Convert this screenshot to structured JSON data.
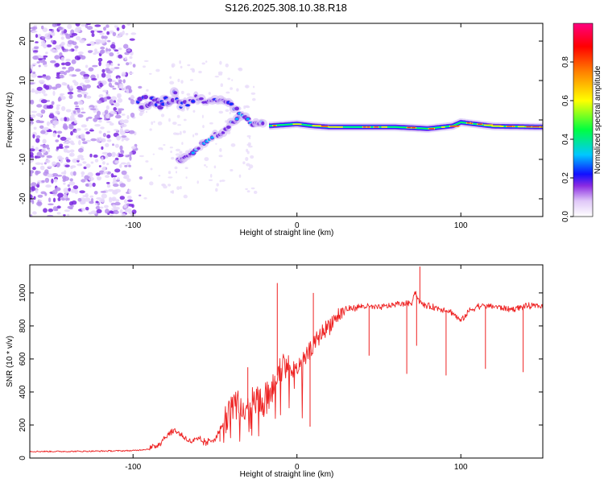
{
  "chart_data": [
    {
      "type": "heatmap",
      "title": "S126.2025.308.10.38.R18",
      "xlabel": "Height of straight line (km)",
      "ylabel": "Frequency (Hz)",
      "xlim": [
        -163,
        150
      ],
      "ylim": [
        -24.5,
        24.5
      ],
      "xticks": [
        -100,
        0,
        100
      ],
      "xtick_labels": [
        "-100",
        "0",
        "100"
      ],
      "yticks": [
        -20,
        -10,
        0,
        10,
        20
      ],
      "ytick_labels": [
        "-20",
        "-10",
        "0",
        "10",
        "20"
      ],
      "colorbar": {
        "label": "Normalized spectral amplitude",
        "range": [
          0,
          1
        ],
        "ticks": [
          0.0,
          0.2,
          0.4,
          0.6,
          0.8
        ],
        "tick_labels": [
          "0.0",
          "0.2",
          "0.4",
          "0.6",
          "0.8"
        ],
        "colors": [
          "#ffffff",
          "#c8a8f0",
          "#8a2be2",
          "#1010ff",
          "#00d0ff",
          "#00ff40",
          "#ffff00",
          "#ff8000",
          "#ff0000",
          "#ff0080"
        ]
      },
      "main_line": {
        "x": [
          -17,
          0,
          10,
          20,
          40,
          60,
          80,
          95,
          100,
          120,
          150
        ],
        "y": [
          -1.5,
          -1,
          -1.5,
          -1.8,
          -1.8,
          -1.8,
          -2.2,
          -1.5,
          -0.6,
          -1.6,
          -1.8
        ]
      },
      "upper_branch": {
        "x": [
          -97,
          -90,
          -85,
          -80,
          -75,
          -70,
          -60,
          -50,
          -40,
          -30
        ],
        "y": [
          4,
          5,
          4,
          5,
          6,
          4,
          6,
          5,
          3,
          1
        ]
      },
      "lower_branch": {
        "x": [
          -72,
          -65,
          -55,
          -45,
          -35,
          -25,
          -20
        ],
        "y": [
          -10,
          -9,
          -5,
          -3,
          1,
          -1,
          -1
        ]
      }
    },
    {
      "type": "line",
      "xlabel": "Height of straight line (km)",
      "ylabel": "SNR (10 * v/v)",
      "xlim": [
        -163,
        150
      ],
      "ylim": [
        0,
        1170
      ],
      "xticks": [
        -100,
        0,
        100
      ],
      "xtick_labels": [
        "-100",
        "0",
        "100"
      ],
      "yticks": [
        0,
        200,
        400,
        600,
        800,
        1000
      ],
      "ytick_labels": [
        "0",
        "200",
        "400",
        "600",
        "800",
        "1000"
      ],
      "series": [
        {
          "name": "SNR",
          "color": "#ee2222",
          "x": [
            -163,
            -140,
            -120,
            -100,
            -90,
            -85,
            -80,
            -75,
            -72,
            -68,
            -65,
            -60,
            -55,
            -50,
            -45,
            -40,
            -37,
            -33,
            -30,
            -25,
            -20,
            -15,
            -12,
            -10,
            -5,
            0,
            5,
            10,
            15,
            20,
            25,
            30,
            40,
            50,
            60,
            70,
            72,
            75,
            80,
            90,
            95,
            100,
            105,
            110,
            120,
            130,
            140,
            150
          ],
          "y": [
            40,
            40,
            42,
            45,
            55,
            80,
            130,
            170,
            150,
            120,
            100,
            110,
            90,
            120,
            200,
            300,
            330,
            280,
            320,
            330,
            350,
            380,
            500,
            560,
            540,
            520,
            600,
            680,
            760,
            810,
            860,
            900,
            920,
            910,
            930,
            940,
            1010,
            940,
            920,
            900,
            880,
            830,
            890,
            920,
            920,
            900,
            920,
            920
          ]
        }
      ],
      "spikes": [
        {
          "x": -12,
          "y": 1060
        },
        {
          "x": -30,
          "y": 550
        },
        {
          "x": -47,
          "y": 100
        },
        {
          "x": 8,
          "y": 190
        },
        {
          "x": 10,
          "y": 1000
        },
        {
          "x": 44,
          "y": 620
        },
        {
          "x": 67,
          "y": 510
        },
        {
          "x": 73,
          "y": 680
        },
        {
          "x": 75,
          "y": 1160
        },
        {
          "x": 91,
          "y": 500
        },
        {
          "x": 115,
          "y": 540
        },
        {
          "x": 138,
          "y": 520
        }
      ]
    }
  ]
}
